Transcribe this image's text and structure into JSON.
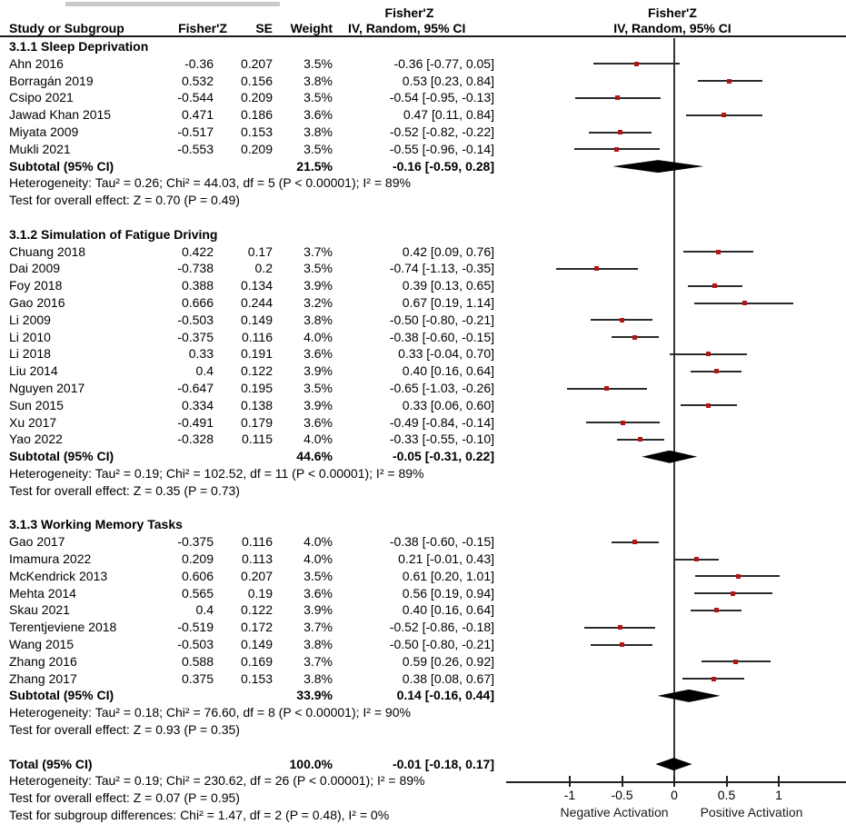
{
  "header": {
    "study_col": "Study or Subgroup",
    "effect_col": "Fisher'Z",
    "se_col": "SE",
    "weight_col": "Weight",
    "ci_col_line1": "Fisher'Z",
    "ci_col_line2": "IV, Random, 95% CI",
    "plot_line1": "Fisher'Z",
    "plot_line2": "IV, Random, 95% CI"
  },
  "axis": {
    "ticks": [
      -1,
      -0.5,
      0,
      0.5,
      1
    ],
    "tick_labels": [
      "-1",
      "-0.5",
      "0",
      "0.5",
      "1"
    ],
    "label_negative": "Negative Activation",
    "label_positive": "Positive Activation"
  },
  "colors": {
    "marker": "#b01818",
    "diamond": "#000000",
    "line": "#2b2b2b",
    "text": "#000000"
  },
  "chart_data": {
    "type": "scatter",
    "subtype": "forest-plot",
    "effect_measure": "Fisher'Z",
    "model": "IV, Random, 95% CI",
    "x_ticks": [
      -1,
      -0.5,
      0,
      0.5,
      1
    ],
    "x_axis_negative_label": "Negative Activation",
    "x_axis_positive_label": "Positive Activation",
    "groups": [
      {
        "name": "3.1.1 Sleep Deprivation",
        "studies": [
          {
            "study": "Ahn 2016",
            "fisherz": "-0.36",
            "se": "0.207",
            "weight": "3.5%",
            "est": -0.36,
            "lo": -0.77,
            "hi": 0.05,
            "ci_text": "-0.36 [-0.77, 0.05]"
          },
          {
            "study": "Borragán 2019",
            "fisherz": "0.532",
            "se": "0.156",
            "weight": "3.8%",
            "est": 0.53,
            "lo": 0.23,
            "hi": 0.84,
            "ci_text": "0.53 [0.23, 0.84]"
          },
          {
            "study": "Csipo 2021",
            "fisherz": "-0.544",
            "se": "0.209",
            "weight": "3.5%",
            "est": -0.54,
            "lo": -0.95,
            "hi": -0.13,
            "ci_text": "-0.54 [-0.95, -0.13]"
          },
          {
            "study": "Jawad Khan 2015",
            "fisherz": "0.471",
            "se": "0.186",
            "weight": "3.6%",
            "est": 0.47,
            "lo": 0.11,
            "hi": 0.84,
            "ci_text": "0.47 [0.11, 0.84]"
          },
          {
            "study": "Miyata 2009",
            "fisherz": "-0.517",
            "se": "0.153",
            "weight": "3.8%",
            "est": -0.52,
            "lo": -0.82,
            "hi": -0.22,
            "ci_text": "-0.52 [-0.82, -0.22]"
          },
          {
            "study": "Mukli 2021",
            "fisherz": "-0.553",
            "se": "0.209",
            "weight": "3.5%",
            "est": -0.55,
            "lo": -0.96,
            "hi": -0.14,
            "ci_text": "-0.55 [-0.96, -0.14]"
          }
        ],
        "subtotal": {
          "label": "Subtotal (95% CI)",
          "weight": "21.5%",
          "est": -0.16,
          "lo": -0.59,
          "hi": 0.28,
          "ci_text": "-0.16 [-0.59, 0.28]"
        },
        "heterogeneity": "Heterogeneity: Tau² = 0.26; Chi² = 44.03, df = 5 (P < 0.00001); I² = 89%",
        "overall_effect": "Test for overall effect: Z = 0.70 (P = 0.49)"
      },
      {
        "name": "3.1.2 Simulation of Fatigue Driving",
        "studies": [
          {
            "study": "Chuang 2018",
            "fisherz": "0.422",
            "se": "0.17",
            "weight": "3.7%",
            "est": 0.42,
            "lo": 0.09,
            "hi": 0.76,
            "ci_text": "0.42 [0.09, 0.76]"
          },
          {
            "study": "Dai 2009",
            "fisherz": "-0.738",
            "se": "0.2",
            "weight": "3.5%",
            "est": -0.74,
            "lo": -1.13,
            "hi": -0.35,
            "ci_text": "-0.74 [-1.13, -0.35]"
          },
          {
            "study": "Foy 2018",
            "fisherz": "0.388",
            "se": "0.134",
            "weight": "3.9%",
            "est": 0.39,
            "lo": 0.13,
            "hi": 0.65,
            "ci_text": "0.39 [0.13, 0.65]"
          },
          {
            "study": "Gao 2016",
            "fisherz": "0.666",
            "se": "0.244",
            "weight": "3.2%",
            "est": 0.67,
            "lo": 0.19,
            "hi": 1.14,
            "ci_text": "0.67 [0.19, 1.14]"
          },
          {
            "study": "Li 2009",
            "fisherz": "-0.503",
            "se": "0.149",
            "weight": "3.8%",
            "est": -0.5,
            "lo": -0.8,
            "hi": -0.21,
            "ci_text": "-0.50 [-0.80, -0.21]"
          },
          {
            "study": "Li 2010",
            "fisherz": "-0.375",
            "se": "0.116",
            "weight": "4.0%",
            "est": -0.38,
            "lo": -0.6,
            "hi": -0.15,
            "ci_text": "-0.38 [-0.60, -0.15]"
          },
          {
            "study": "Li 2018",
            "fisherz": "0.33",
            "se": "0.191",
            "weight": "3.6%",
            "est": 0.33,
            "lo": -0.04,
            "hi": 0.7,
            "ci_text": "0.33 [-0.04, 0.70]"
          },
          {
            "study": "Liu 2014",
            "fisherz": "0.4",
            "se": "0.122",
            "weight": "3.9%",
            "est": 0.4,
            "lo": 0.16,
            "hi": 0.64,
            "ci_text": "0.40 [0.16, 0.64]"
          },
          {
            "study": "Nguyen 2017",
            "fisherz": "-0.647",
            "se": "0.195",
            "weight": "3.5%",
            "est": -0.65,
            "lo": -1.03,
            "hi": -0.26,
            "ci_text": "-0.65 [-1.03, -0.26]"
          },
          {
            "study": "Sun 2015",
            "fisherz": "0.334",
            "se": "0.138",
            "weight": "3.9%",
            "est": 0.33,
            "lo": 0.06,
            "hi": 0.6,
            "ci_text": "0.33 [0.06, 0.60]"
          },
          {
            "study": "Xu 2017",
            "fisherz": "-0.491",
            "se": "0.179",
            "weight": "3.6%",
            "est": -0.49,
            "lo": -0.84,
            "hi": -0.14,
            "ci_text": "-0.49 [-0.84, -0.14]"
          },
          {
            "study": "Yao 2022",
            "fisherz": "-0.328",
            "se": "0.115",
            "weight": "4.0%",
            "est": -0.33,
            "lo": -0.55,
            "hi": -0.1,
            "ci_text": "-0.33 [-0.55, -0.10]"
          }
        ],
        "subtotal": {
          "label": "Subtotal (95% CI)",
          "weight": "44.6%",
          "est": -0.05,
          "lo": -0.31,
          "hi": 0.22,
          "ci_text": "-0.05 [-0.31, 0.22]"
        },
        "heterogeneity": "Heterogeneity: Tau² = 0.19; Chi² = 102.52, df = 11 (P < 0.00001); I² = 89%",
        "overall_effect": "Test for overall effect: Z = 0.35 (P = 0.73)"
      },
      {
        "name": "3.1.3 Working Memory Tasks",
        "studies": [
          {
            "study": "Gao 2017",
            "fisherz": "-0.375",
            "se": "0.116",
            "weight": "4.0%",
            "est": -0.38,
            "lo": -0.6,
            "hi": -0.15,
            "ci_text": "-0.38 [-0.60, -0.15]"
          },
          {
            "study": "Imamura 2022",
            "fisherz": "0.209",
            "se": "0.113",
            "weight": "4.0%",
            "est": 0.21,
            "lo": -0.01,
            "hi": 0.43,
            "ci_text": "0.21 [-0.01, 0.43]"
          },
          {
            "study": "McKendrick 2013",
            "fisherz": "0.606",
            "se": "0.207",
            "weight": "3.5%",
            "est": 0.61,
            "lo": 0.2,
            "hi": 1.01,
            "ci_text": "0.61 [0.20, 1.01]"
          },
          {
            "study": "Mehta 2014",
            "fisherz": "0.565",
            "se": "0.19",
            "weight": "3.6%",
            "est": 0.56,
            "lo": 0.19,
            "hi": 0.94,
            "ci_text": "0.56 [0.19, 0.94]"
          },
          {
            "study": "Skau 2021",
            "fisherz": "0.4",
            "se": "0.122",
            "weight": "3.9%",
            "est": 0.4,
            "lo": 0.16,
            "hi": 0.64,
            "ci_text": "0.40 [0.16, 0.64]"
          },
          {
            "study": "Terentjeviene 2018",
            "fisherz": "-0.519",
            "se": "0.172",
            "weight": "3.7%",
            "est": -0.52,
            "lo": -0.86,
            "hi": -0.18,
            "ci_text": "-0.52 [-0.86, -0.18]"
          },
          {
            "study": "Wang 2015",
            "fisherz": "-0.503",
            "se": "0.149",
            "weight": "3.8%",
            "est": -0.5,
            "lo": -0.8,
            "hi": -0.21,
            "ci_text": "-0.50 [-0.80, -0.21]"
          },
          {
            "study": "Zhang 2016",
            "fisherz": "0.588",
            "se": "0.169",
            "weight": "3.7%",
            "est": 0.59,
            "lo": 0.26,
            "hi": 0.92,
            "ci_text": "0.59 [0.26, 0.92]"
          },
          {
            "study": "Zhang 2017",
            "fisherz": "0.375",
            "se": "0.153",
            "weight": "3.8%",
            "est": 0.38,
            "lo": 0.08,
            "hi": 0.67,
            "ci_text": "0.38 [0.08, 0.67]"
          }
        ],
        "subtotal": {
          "label": "Subtotal (95% CI)",
          "weight": "33.9%",
          "est": 0.14,
          "lo": -0.16,
          "hi": 0.44,
          "ci_text": "0.14 [-0.16, 0.44]"
        },
        "heterogeneity": "Heterogeneity: Tau² = 0.18; Chi² = 76.60, df = 8 (P < 0.00001); I² = 90%",
        "overall_effect": "Test for overall effect: Z = 0.93 (P = 0.35)"
      }
    ],
    "total": {
      "label": "Total (95% CI)",
      "weight": "100.0%",
      "est": -0.01,
      "lo": -0.18,
      "hi": 0.17,
      "ci_text": "-0.01 [-0.18, 0.17]",
      "heterogeneity": "Heterogeneity: Tau² = 0.19; Chi² = 230.62, df = 26 (P < 0.00001); I² = 89%",
      "overall_effect": "Test for overall effect: Z = 0.07 (P = 0.95)",
      "subgroup_differences": "Test for subgroup differences: Chi² = 1.47, df = 2 (P = 0.48), I² = 0%"
    }
  }
}
